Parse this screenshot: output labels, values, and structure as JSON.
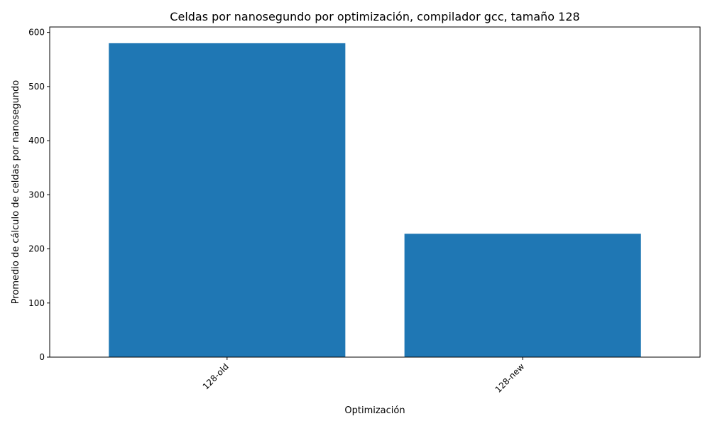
{
  "chart_data": {
    "type": "bar",
    "title": "Celdas por nanosegundo por optimización, compilador gcc, tamaño 128",
    "xlabel": "Optimización",
    "ylabel": "Promedio de cálculo de celdas por nanosegundo",
    "categories": [
      "128-old",
      "128-new"
    ],
    "values": [
      580,
      228
    ],
    "ylim": [
      0,
      610
    ],
    "yticks": [
      0,
      100,
      200,
      300,
      400,
      500,
      600
    ],
    "bar_color": "#1f77b4",
    "grid": false,
    "x_tick_rotation": 45
  }
}
